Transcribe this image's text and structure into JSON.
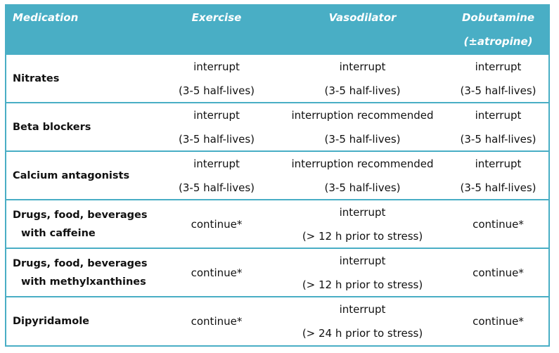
{
  "headers": {
    "medication": "Medication",
    "exercise": "Exercise",
    "vasodilator": "Vasodilator",
    "dobutamine_line1": "Dobutamine",
    "dobutamine_line2": "(±atropine)"
  },
  "rows": [
    {
      "medication": [
        "Nitrates"
      ],
      "exercise": [
        "interrupt",
        "(3-5 half-lives)"
      ],
      "vasodilator": [
        "interrupt",
        "(3-5 half-lives)"
      ],
      "dobutamine": [
        "interrupt",
        "(3-5 half-lives)"
      ]
    },
    {
      "medication": [
        "Beta blockers"
      ],
      "exercise": [
        "interrupt",
        "(3-5 half-lives)"
      ],
      "vasodilator": [
        "interruption recommended",
        "(3-5 half-lives)"
      ],
      "dobutamine": [
        "interrupt",
        "(3-5 half-lives)"
      ]
    },
    {
      "medication": [
        "Calcium antagonists"
      ],
      "exercise": [
        "interrupt",
        "(3-5 half-lives)"
      ],
      "vasodilator": [
        "interruption recommended",
        "(3-5 half-lives)"
      ],
      "dobutamine": [
        "interrupt",
        "(3-5 half-lives)"
      ]
    },
    {
      "medication": [
        "Drugs, food, beverages",
        "with caffeine"
      ],
      "exercise": [
        "continue*"
      ],
      "vasodilator": [
        "interrupt",
        "(> 12 h prior to stress)"
      ],
      "dobutamine": [
        "continue*"
      ]
    },
    {
      "medication": [
        "Drugs, food, beverages",
        "with methylxanthines"
      ],
      "exercise": [
        "continue*"
      ],
      "vasodilator": [
        "interrupt",
        "(> 12 h prior to stress)"
      ],
      "dobutamine": [
        "continue*"
      ]
    },
    {
      "medication": [
        "Dipyridamole"
      ],
      "exercise": [
        "continue*"
      ],
      "vasodilator": [
        "interrupt",
        "(> 24 h prior to stress)"
      ],
      "dobutamine": [
        "continue*"
      ]
    }
  ]
}
